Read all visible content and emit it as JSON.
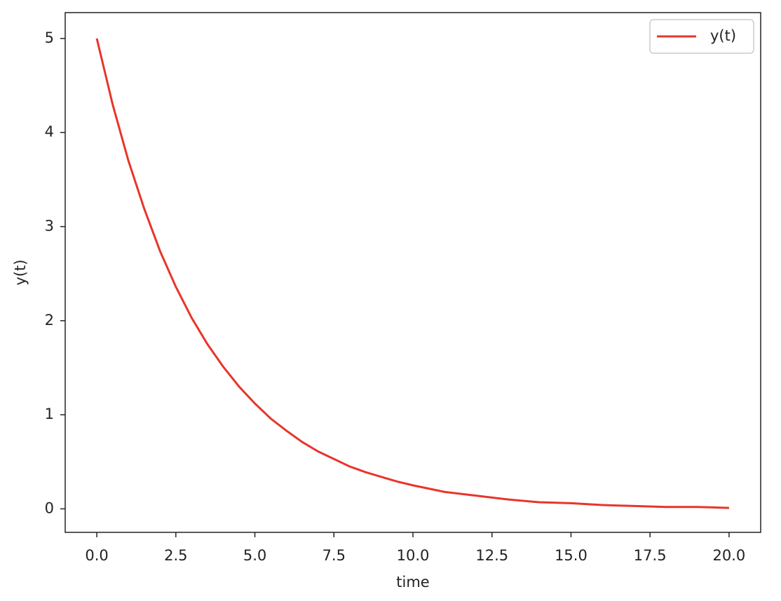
{
  "chart_data": {
    "type": "line",
    "xlabel": "time",
    "ylabel": "y(t)",
    "x": [
      0,
      0.5,
      1,
      1.5,
      2,
      2.5,
      3,
      3.5,
      4,
      4.5,
      5,
      5.5,
      6,
      6.5,
      7,
      7.5,
      8,
      8.5,
      9,
      9.5,
      10,
      11,
      12,
      13,
      14,
      15,
      16,
      17,
      18,
      19,
      20
    ],
    "series": [
      {
        "name": "y(t)",
        "color": "#e8352a",
        "values": [
          5,
          4.3,
          3.7,
          3.19,
          2.74,
          2.36,
          2.03,
          1.75,
          1.51,
          1.3,
          1.12,
          0.96,
          0.83,
          0.71,
          0.61,
          0.53,
          0.45,
          0.39,
          0.34,
          0.29,
          0.25,
          0.18,
          0.14,
          0.1,
          0.07,
          0.06,
          0.04,
          0.03,
          0.02,
          0.02,
          0.01
        ]
      }
    ],
    "xlim": [
      -1,
      21
    ],
    "ylim": [
      -0.25,
      5.275
    ],
    "xticks": [
      {
        "value": 0,
        "label": "0.0"
      },
      {
        "value": 2.5,
        "label": "2.5"
      },
      {
        "value": 5,
        "label": "5.0"
      },
      {
        "value": 7.5,
        "label": "7.5"
      },
      {
        "value": 10,
        "label": "10.0"
      },
      {
        "value": 12.5,
        "label": "12.5"
      },
      {
        "value": 15,
        "label": "15.0"
      },
      {
        "value": 17.5,
        "label": "17.5"
      },
      {
        "value": 20,
        "label": "20.0"
      }
    ],
    "yticks": [
      0,
      1,
      2,
      3,
      4,
      5
    ],
    "legend": "upper-right",
    "grid": false
  }
}
